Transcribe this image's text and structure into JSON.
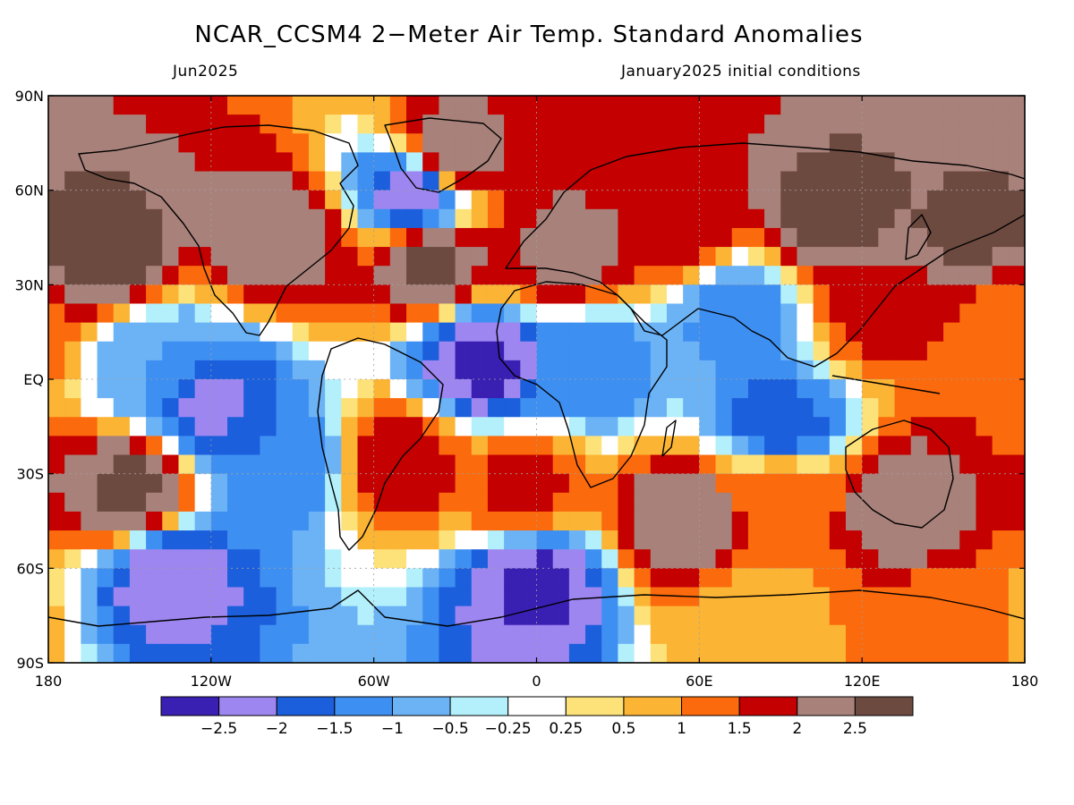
{
  "title": "NCAR_CCSM4 2−Meter Air Temp. Standard Anomalies",
  "subtitle_left": "Jun2025",
  "subtitle_right": "January2025 initial conditions",
  "map": {
    "lon_range": [
      -180,
      180
    ],
    "lat_range": [
      -90,
      90
    ],
    "lat_labels": [
      {
        "lat": 90,
        "text": "90N"
      },
      {
        "lat": 60,
        "text": "60N"
      },
      {
        "lat": 30,
        "text": "30N"
      },
      {
        "lat": 0,
        "text": "EQ"
      },
      {
        "lat": -30,
        "text": "30S"
      },
      {
        "lat": -60,
        "text": "60S"
      },
      {
        "lat": -90,
        "text": "90S"
      }
    ],
    "lon_labels": [
      {
        "lon": -180,
        "text": "180"
      },
      {
        "lon": -120,
        "text": "120W"
      },
      {
        "lon": -60,
        "text": "60W"
      },
      {
        "lon": 0,
        "text": "0"
      },
      {
        "lon": 60,
        "text": "60E"
      },
      {
        "lon": 120,
        "text": "120E"
      },
      {
        "lon": 180,
        "text": "180"
      }
    ],
    "gridlines": "dotted",
    "anomaly_regions": [
      {
        "lon": -160,
        "lat": 40,
        "value": 2.8
      },
      {
        "lon": -95,
        "lat": 45,
        "value": 2.4
      },
      {
        "lon": -40,
        "lat": 38,
        "value": 2.6
      },
      {
        "lon": -30,
        "lat": 72,
        "value": 2.3
      },
      {
        "lon": -45,
        "lat": 58,
        "value": -2.3
      },
      {
        "lon": 10,
        "lat": 40,
        "value": 2.2
      },
      {
        "lon": 50,
        "lat": 50,
        "value": 2.0
      },
      {
        "lon": 110,
        "lat": 52,
        "value": 2.7
      },
      {
        "lon": 160,
        "lat": 45,
        "value": 2.6
      },
      {
        "lon": 125,
        "lat": 22,
        "value": 1.6
      },
      {
        "lon": 170,
        "lat": 20,
        "value": 1.4
      },
      {
        "lon": -20,
        "lat": 5,
        "value": -2.6
      },
      {
        "lon": 20,
        "lat": 5,
        "value": -1.3
      },
      {
        "lon": 75,
        "lat": 20,
        "value": -1.2
      },
      {
        "lon": -140,
        "lat": 5,
        "value": -1.0
      },
      {
        "lon": -120,
        "lat": -8,
        "value": -2.1
      },
      {
        "lon": -150,
        "lat": -35,
        "value": 2.6
      },
      {
        "lon": -95,
        "lat": -25,
        "value": -1.5
      },
      {
        "lon": -50,
        "lat": -25,
        "value": 1.8
      },
      {
        "lon": -5,
        "lat": -35,
        "value": 1.6
      },
      {
        "lon": 90,
        "lat": -15,
        "value": -1.8
      },
      {
        "lon": 55,
        "lat": -45,
        "value": 2.5
      },
      {
        "lon": 135,
        "lat": -40,
        "value": 2.4
      },
      {
        "lon": 90,
        "lat": -35,
        "value": 1.2
      },
      {
        "lon": -135,
        "lat": -62,
        "value": -2.3
      },
      {
        "lon": 0,
        "lat": -65,
        "value": -2.6
      },
      {
        "lon": 80,
        "lat": -75,
        "value": 0.8
      },
      {
        "lon": 150,
        "lat": -80,
        "value": 1.1
      }
    ]
  },
  "colorbar": {
    "colors": [
      "#3a1fb3",
      "#9d86f0",
      "#1b5fdc",
      "#3e8ff2",
      "#6cb3f6",
      "#b3f0fb",
      "#ffffff",
      "#fde27a",
      "#fbb433",
      "#fb6a0d",
      "#c40000",
      "#a8817a",
      "#6d4a40"
    ],
    "labels": [
      "−2.5",
      "−2",
      "−1.5",
      "−1",
      "−0.5",
      "−0.25",
      "0.25",
      "0.5",
      "1",
      "1.5",
      "2",
      "2.5"
    ],
    "breaks": [
      -2.5,
      -2,
      -1.5,
      -1,
      -0.5,
      -0.25,
      0.25,
      0.5,
      1,
      1.5,
      2,
      2.5
    ]
  }
}
